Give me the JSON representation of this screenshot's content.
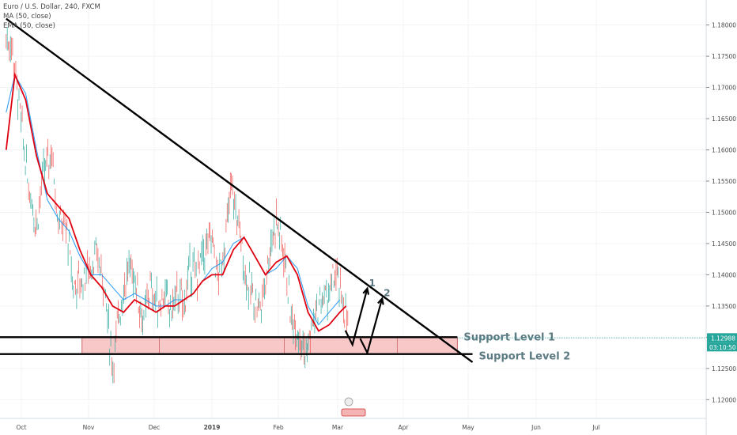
{
  "legend": {
    "symbol_line": "Euro / U.S. Dollar, 240, FXCM",
    "ma_line": "MA (50, close)",
    "ema_line": "EMA (50, close)"
  },
  "chart_data": {
    "type": "candlestick",
    "timeframe": "240",
    "x_ticks": [
      "Oct",
      "Nov",
      "Dec",
      "2019",
      "Feb",
      "Mar",
      "Apr",
      "May",
      "Jun",
      "Jul"
    ],
    "y_ticks": [
      1.12,
      1.125,
      1.13,
      1.135,
      1.14,
      1.145,
      1.15,
      1.155,
      1.16,
      1.165,
      1.17,
      1.175,
      1.18
    ],
    "y_tick_labels": [
      "1.12000",
      "1.12500",
      "1.13000",
      "1.13500",
      "1.14000",
      "1.14500",
      "1.15000",
      "1.15500",
      "1.16000",
      "1.16500",
      "1.17000",
      "1.17500",
      "1.18000"
    ],
    "ylim": [
      1.117,
      1.184
    ],
    "last_price": "1.12988",
    "countdown": "03:10:50",
    "price_path": [
      [
        "2018-09-24",
        1.178
      ],
      [
        "2018-09-27",
        1.176
      ],
      [
        "2018-10-01",
        1.164
      ],
      [
        "2018-10-04",
        1.155
      ],
      [
        "2018-10-08",
        1.148
      ],
      [
        "2018-10-11",
        1.156
      ],
      [
        "2018-10-15",
        1.16
      ],
      [
        "2018-10-18",
        1.149
      ],
      [
        "2018-10-22",
        1.147
      ],
      [
        "2018-10-25",
        1.138
      ],
      [
        "2018-10-29",
        1.139
      ],
      [
        "2018-11-01",
        1.141
      ],
      [
        "2018-11-05",
        1.143
      ],
      [
        "2018-11-08",
        1.139
      ],
      [
        "2018-11-12",
        1.125
      ],
      [
        "2018-11-15",
        1.134
      ],
      [
        "2018-11-19",
        1.141
      ],
      [
        "2018-11-22",
        1.14
      ],
      [
        "2018-11-26",
        1.132
      ],
      [
        "2018-11-29",
        1.138
      ],
      [
        "2018-12-03",
        1.135
      ],
      [
        "2018-12-06",
        1.137
      ],
      [
        "2018-12-10",
        1.134
      ],
      [
        "2018-12-13",
        1.137
      ],
      [
        "2018-12-17",
        1.135
      ],
      [
        "2018-12-20",
        1.141
      ],
      [
        "2018-12-24",
        1.14
      ],
      [
        "2018-12-27",
        1.143
      ],
      [
        "2019-01-01",
        1.146
      ],
      [
        "2019-01-04",
        1.139
      ],
      [
        "2019-01-07",
        1.145
      ],
      [
        "2019-01-10",
        1.154
      ],
      [
        "2019-01-14",
        1.147
      ],
      [
        "2019-01-17",
        1.139
      ],
      [
        "2019-01-21",
        1.136
      ],
      [
        "2019-01-24",
        1.135
      ],
      [
        "2019-01-28",
        1.144
      ],
      [
        "2019-01-31",
        1.149
      ],
      [
        "2019-02-04",
        1.143
      ],
      [
        "2019-02-07",
        1.133
      ],
      [
        "2019-02-11",
        1.131
      ],
      [
        "2019-02-14",
        1.127
      ],
      [
        "2019-02-18",
        1.133
      ],
      [
        "2019-02-21",
        1.136
      ],
      [
        "2019-02-25",
        1.137
      ],
      [
        "2019-02-28",
        1.14
      ],
      [
        "2019-03-04",
        1.135
      ],
      [
        "2019-03-06",
        1.131
      ]
    ],
    "ma_path": [
      [
        "2018-09-24",
        1.166
      ],
      [
        "2018-09-28",
        1.172
      ],
      [
        "2018-10-03",
        1.169
      ],
      [
        "2018-10-08",
        1.16
      ],
      [
        "2018-10-13",
        1.152
      ],
      [
        "2018-10-18",
        1.149
      ],
      [
        "2018-10-23",
        1.147
      ],
      [
        "2018-10-28",
        1.143
      ],
      [
        "2018-11-02",
        1.14
      ],
      [
        "2018-11-07",
        1.14
      ],
      [
        "2018-11-12",
        1.138
      ],
      [
        "2018-11-17",
        1.136
      ],
      [
        "2018-11-22",
        1.137
      ],
      [
        "2018-11-27",
        1.136
      ],
      [
        "2018-12-02",
        1.135
      ],
      [
        "2018-12-07",
        1.135
      ],
      [
        "2018-12-12",
        1.136
      ],
      [
        "2018-12-17",
        1.136
      ],
      [
        "2018-12-22",
        1.137
      ],
      [
        "2018-12-27",
        1.139
      ],
      [
        "2019-01-01",
        1.141
      ],
      [
        "2019-01-06",
        1.142
      ],
      [
        "2019-01-11",
        1.145
      ],
      [
        "2019-01-16",
        1.146
      ],
      [
        "2019-01-21",
        1.143
      ],
      [
        "2019-01-26",
        1.14
      ],
      [
        "2019-01-31",
        1.141
      ],
      [
        "2019-02-05",
        1.143
      ],
      [
        "2019-02-10",
        1.141
      ],
      [
        "2019-02-15",
        1.135
      ],
      [
        "2019-02-20",
        1.132
      ],
      [
        "2019-02-25",
        1.134
      ],
      [
        "2019-03-02",
        1.136
      ]
    ],
    "ema_path": [
      [
        "2018-09-24",
        1.16
      ],
      [
        "2018-09-28",
        1.172
      ],
      [
        "2018-10-03",
        1.168
      ],
      [
        "2018-10-08",
        1.159
      ],
      [
        "2018-10-13",
        1.153
      ],
      [
        "2018-10-18",
        1.151
      ],
      [
        "2018-10-23",
        1.149
      ],
      [
        "2018-10-28",
        1.144
      ],
      [
        "2018-11-02",
        1.14
      ],
      [
        "2018-11-07",
        1.138
      ],
      [
        "2018-11-12",
        1.135
      ],
      [
        "2018-11-17",
        1.134
      ],
      [
        "2018-11-22",
        1.136
      ],
      [
        "2018-11-27",
        1.135
      ],
      [
        "2018-12-02",
        1.134
      ],
      [
        "2018-12-07",
        1.135
      ],
      [
        "2018-12-12",
        1.135
      ],
      [
        "2018-12-17",
        1.136
      ],
      [
        "2018-12-22",
        1.137
      ],
      [
        "2018-12-27",
        1.139
      ],
      [
        "2019-01-01",
        1.14
      ],
      [
        "2019-01-06",
        1.14
      ],
      [
        "2019-01-11",
        1.144
      ],
      [
        "2019-01-16",
        1.146
      ],
      [
        "2019-01-21",
        1.143
      ],
      [
        "2019-01-26",
        1.14
      ],
      [
        "2019-01-31",
        1.142
      ],
      [
        "2019-02-05",
        1.143
      ],
      [
        "2019-02-10",
        1.14
      ],
      [
        "2019-02-15",
        1.134
      ],
      [
        "2019-02-20",
        1.131
      ],
      [
        "2019-02-25",
        1.132
      ],
      [
        "2019-03-02",
        1.134
      ],
      [
        "2019-03-05",
        1.135
      ]
    ],
    "trendline": {
      "start": [
        "2018-09-24",
        1.181
      ],
      "end": [
        "2019-05-03",
        1.126
      ]
    },
    "support_zone": {
      "start": "2018-10-29",
      "end": "2019-04-26",
      "top": 1.13,
      "bottom": 1.1273
    },
    "support_lines": [
      {
        "label": "Support Level 1",
        "price": 1.13,
        "start": "2018-09-20",
        "end": "2019-04-26"
      },
      {
        "label": "Support Level 2",
        "price": 1.1273,
        "start": "2018-09-20",
        "end": "2019-05-03"
      }
    ],
    "projections": [
      {
        "label": "1",
        "from": [
          "2019-03-08",
          1.1288
        ],
        "to": [
          "2019-03-15",
          1.1378
        ]
      },
      {
        "label": "2",
        "from": [
          "2019-03-15",
          1.1275
        ],
        "to": [
          "2019-03-22",
          1.1362
        ]
      }
    ],
    "colors": {
      "price_up": "#26a69a",
      "price_down": "#ef5350",
      "ma": "#2196f3",
      "ema": "#e00010",
      "trendline": "#000000",
      "zone_fill": "#f8c8c8",
      "zone_border": "#c04040",
      "label_text": "#5c7a82",
      "last_price_bg": "#26a69a"
    }
  }
}
